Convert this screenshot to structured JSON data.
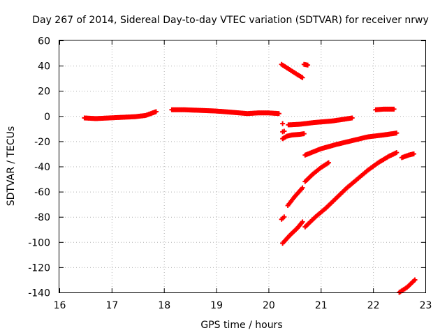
{
  "chart_data": {
    "type": "scatter",
    "title": "Day 267 of 2014, Sidereal Day-to-day VTEC variation (SDTVAR) for receiver nrwy",
    "xlabel": "GPS time / hours",
    "ylabel": "SDTVAR / TECUs",
    "xlim": [
      16,
      23
    ],
    "ylim": [
      -140,
      60
    ],
    "xticks": [
      "16",
      "17",
      "18",
      "19",
      "20",
      "21",
      "22",
      "23"
    ],
    "yticks": [
      "60",
      "40",
      "20",
      "0",
      "-20",
      "-40",
      "-60",
      "-80",
      "-100",
      "-120",
      "-140"
    ],
    "grid": true,
    "marker": "plus",
    "color": "#ff0000",
    "series": [
      {
        "points": [
          [
            16.48,
            -1.5
          ],
          [
            16.7,
            -2
          ],
          [
            16.95,
            -1.5
          ],
          [
            17.2,
            -1
          ],
          [
            17.45,
            -0.5
          ],
          [
            17.65,
            0.5
          ],
          [
            17.75,
            2
          ],
          [
            17.85,
            3.5
          ]
        ]
      },
      {
        "points": [
          [
            18.15,
            5
          ],
          [
            18.4,
            5
          ],
          [
            18.7,
            4.5
          ],
          [
            19.0,
            4
          ],
          [
            19.3,
            3
          ],
          [
            19.6,
            2
          ],
          [
            19.8,
            2.5
          ],
          [
            20.0,
            2.5
          ],
          [
            20.2,
            2
          ]
        ]
      },
      {
        "points": [
          [
            20.25,
            41
          ],
          [
            20.4,
            37
          ],
          [
            20.55,
            33
          ],
          [
            20.65,
            30.5
          ]
        ]
      },
      {
        "points": [
          [
            20.68,
            41
          ],
          [
            20.75,
            40.5
          ]
        ]
      },
      {
        "points": [
          [
            20.27,
            -6
          ]
        ]
      },
      {
        "points": [
          [
            20.27,
            -12.5
          ],
          [
            20.3,
            -12
          ]
        ]
      },
      {
        "points": [
          [
            20.27,
            -18
          ],
          [
            20.35,
            -16
          ],
          [
            20.45,
            -15
          ],
          [
            20.6,
            -14.5
          ],
          [
            20.68,
            -14
          ]
        ]
      },
      {
        "points": [
          [
            20.38,
            -7
          ],
          [
            20.6,
            -6.5
          ],
          [
            20.9,
            -5
          ],
          [
            21.2,
            -4
          ],
          [
            21.45,
            -2.5
          ],
          [
            21.6,
            -1.5
          ]
        ]
      },
      {
        "points": [
          [
            22.05,
            5
          ],
          [
            22.2,
            5.5
          ],
          [
            22.4,
            5.5
          ]
        ]
      },
      {
        "points": [
          [
            20.7,
            -31
          ],
          [
            21.0,
            -26
          ],
          [
            21.3,
            -22.5
          ],
          [
            21.6,
            -19.5
          ],
          [
            21.9,
            -16.5
          ],
          [
            22.2,
            -15
          ],
          [
            22.45,
            -13.5
          ]
        ]
      },
      {
        "points": [
          [
            22.55,
            -33
          ],
          [
            22.68,
            -31
          ],
          [
            22.78,
            -30
          ]
        ]
      },
      {
        "points": [
          [
            20.7,
            -52
          ],
          [
            20.85,
            -46
          ],
          [
            21.0,
            -41
          ],
          [
            21.15,
            -37
          ]
        ]
      },
      {
        "points": [
          [
            20.25,
            -82
          ],
          [
            20.3,
            -80
          ]
        ]
      },
      {
        "points": [
          [
            20.37,
            -71
          ],
          [
            20.5,
            -64
          ],
          [
            20.65,
            -57
          ]
        ]
      },
      {
        "points": [
          [
            20.27,
            -101
          ],
          [
            20.4,
            -95
          ],
          [
            20.55,
            -89
          ],
          [
            20.65,
            -84
          ]
        ]
      },
      {
        "points": [
          [
            20.7,
            -88
          ],
          [
            20.9,
            -80
          ],
          [
            21.1,
            -73
          ],
          [
            21.3,
            -65
          ],
          [
            21.5,
            -57
          ],
          [
            21.7,
            -50
          ],
          [
            21.9,
            -43
          ],
          [
            22.1,
            -37
          ],
          [
            22.3,
            -32
          ],
          [
            22.45,
            -29
          ]
        ]
      },
      {
        "points": [
          [
            22.5,
            -140
          ],
          [
            22.65,
            -136
          ],
          [
            22.8,
            -130
          ]
        ]
      }
    ]
  }
}
